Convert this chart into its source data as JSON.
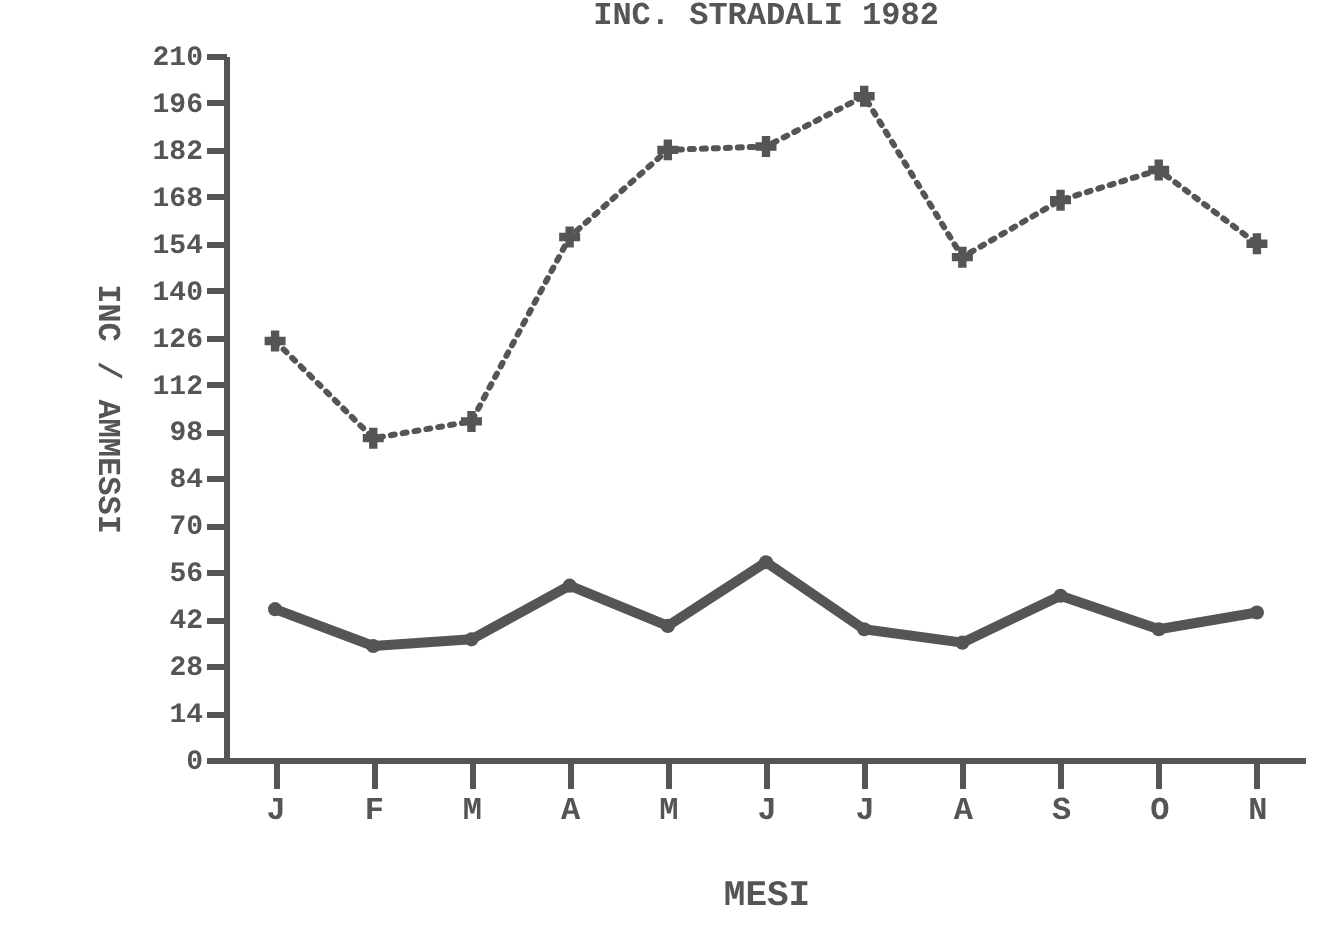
{
  "chart_data": {
    "type": "line",
    "title": "INC. STRADALI 1982",
    "xlabel": "MESI",
    "ylabel": "INC / AMMESSI",
    "categories": [
      "J",
      "F",
      "M",
      "A",
      "M",
      "J",
      "J",
      "A",
      "S",
      "O",
      "N"
    ],
    "series": [
      {
        "color": "#555555",
        "line_style": "dotted",
        "marker": "cross",
        "values": [
          125,
          96,
          101,
          156,
          182,
          183,
          198,
          150,
          167,
          176,
          154
        ]
      },
      {
        "color": "#555555",
        "line_style": "solid",
        "marker": "circle",
        "values": [
          45,
          34,
          36,
          52,
          40,
          59,
          39,
          35,
          49,
          39,
          44
        ]
      }
    ],
    "ylim": [
      0,
      210
    ],
    "yticks": [
      0,
      14,
      28,
      42,
      56,
      70,
      84,
      98,
      112,
      126,
      140,
      154,
      168,
      182,
      196,
      210
    ]
  }
}
